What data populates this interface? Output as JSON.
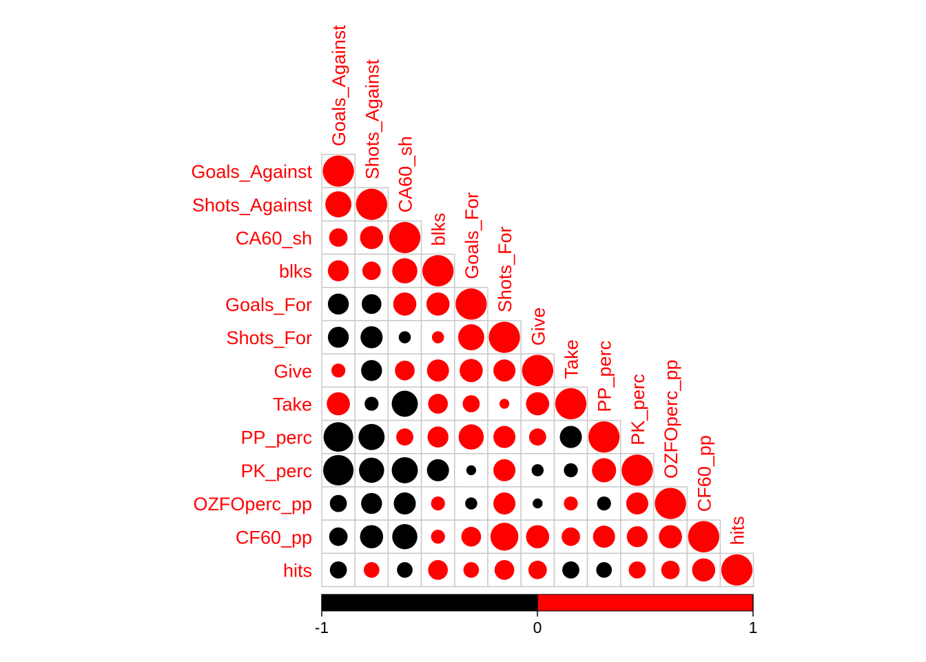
{
  "chart_data": {
    "type": "heatmap",
    "style": "corrplot-circle-lower",
    "variables": [
      "Goals_Against",
      "Shots_Against",
      "CA60_sh",
      "blks",
      "Goals_For",
      "Shots_For",
      "Give",
      "Take",
      "PP_perc",
      "PK_perc",
      "OZFOperc_pp",
      "CF60_pp",
      "hits"
    ],
    "matrix_lower": [
      [
        1.0
      ],
      [
        0.7,
        1.0
      ],
      [
        0.35,
        0.55,
        1.0
      ],
      [
        0.45,
        0.35,
        0.65,
        1.0
      ],
      [
        -0.45,
        -0.4,
        0.55,
        0.55,
        1.0
      ],
      [
        -0.45,
        -0.5,
        -0.15,
        0.15,
        0.7,
        1.0
      ],
      [
        0.2,
        -0.45,
        0.4,
        0.5,
        0.55,
        0.5,
        1.0
      ],
      [
        0.55,
        -0.2,
        -0.7,
        0.4,
        0.3,
        0.1,
        0.55,
        1.0
      ],
      [
        -0.9,
        -0.7,
        0.3,
        0.45,
        0.65,
        0.5,
        0.3,
        -0.5,
        1.0
      ],
      [
        -0.95,
        -0.65,
        -0.7,
        -0.5,
        -0.1,
        0.5,
        -0.15,
        -0.2,
        0.6,
        1.0
      ],
      [
        -0.3,
        -0.45,
        -0.5,
        0.2,
        -0.15,
        0.5,
        -0.1,
        0.2,
        -0.2,
        0.5,
        1.0
      ],
      [
        -0.35,
        -0.55,
        -0.65,
        0.2,
        0.4,
        0.8,
        0.55,
        0.35,
        0.5,
        0.45,
        0.55,
        1.0
      ],
      [
        -0.3,
        0.25,
        -0.25,
        0.4,
        0.25,
        0.4,
        0.35,
        -0.3,
        -0.25,
        0.3,
        0.35,
        0.55,
        1.0
      ]
    ],
    "colorbar": {
      "ticks": [
        "-1",
        "0",
        "1"
      ],
      "range": [
        -1,
        1
      ],
      "negative_color": "#000000",
      "positive_color": "#ff0000"
    },
    "label_color": "#ff0000",
    "grid_color": "#c8c8c8"
  }
}
